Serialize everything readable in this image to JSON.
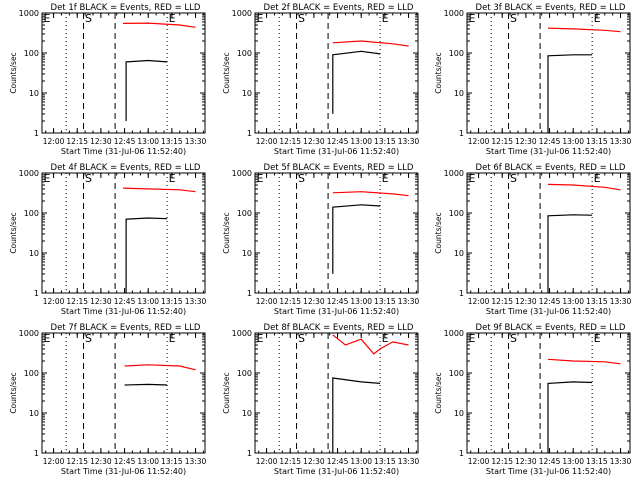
{
  "figure": {
    "xlabel": "Start Time (31-Jul-06 11:52:40)",
    "ylabel": "Counts/sec",
    "marker_labels": [
      "E",
      "S",
      "E"
    ]
  },
  "colors": {
    "events": "#000000",
    "lld": "#ff0000",
    "axis": "#000000",
    "background": "#ffffff"
  },
  "chart_data": [
    {
      "type": "line",
      "title": "Det 1f BLACK = Events, RED = LLD",
      "xlabel": "Start Time (31-Jul-06 11:52:40)",
      "ylabel": "Counts/sec",
      "x_ticks": [
        "12:00",
        "12:15",
        "12:30",
        "12:45",
        "13:00",
        "13:15",
        "13:30"
      ],
      "y_ticks": [
        "1",
        "10",
        "100",
        "1000"
      ],
      "ylim": [
        1,
        1000
      ],
      "y_scale": "log",
      "markers": [
        {
          "x": "12:08",
          "style": "dotted"
        },
        {
          "x": "12:19",
          "style": "dashed",
          "label": "S"
        },
        {
          "x": "12:39",
          "style": "dashed"
        },
        {
          "x": "13:12",
          "style": "dotted",
          "label": "E"
        }
      ],
      "series": [
        {
          "name": "BLACK = Events",
          "color": "#000000",
          "x": [
            "12:46",
            "12:46",
            "13:00",
            "13:12"
          ],
          "y": [
            2,
            60,
            65,
            60
          ]
        },
        {
          "name": "RED = LLD",
          "color": "#ff0000",
          "x": [
            "12:44",
            "13:00",
            "13:20",
            "13:30"
          ],
          "y": [
            550,
            560,
            500,
            440
          ]
        }
      ]
    },
    {
      "type": "line",
      "title": "Det 2f BLACK = Events, RED = LLD",
      "xlabel": "Start Time (31-Jul-06 11:52:40)",
      "ylabel": "Counts/sec",
      "x_ticks": [
        "12:00",
        "12:15",
        "12:30",
        "12:45",
        "13:00",
        "13:15",
        "13:30"
      ],
      "y_ticks": [
        "1",
        "10",
        "100",
        "1000"
      ],
      "ylim": [
        1,
        1000
      ],
      "y_scale": "log",
      "markers": [
        {
          "x": "12:08",
          "style": "dotted"
        },
        {
          "x": "12:19",
          "style": "dashed",
          "label": "S"
        },
        {
          "x": "12:39",
          "style": "dashed"
        },
        {
          "x": "13:12",
          "style": "dotted",
          "label": "E"
        }
      ],
      "series": [
        {
          "name": "BLACK = Events",
          "color": "#000000",
          "x": [
            "12:42",
            "12:42",
            "13:00",
            "13:12"
          ],
          "y": [
            3,
            90,
            110,
            95
          ]
        },
        {
          "name": "RED = LLD",
          "color": "#ff0000",
          "x": [
            "12:42",
            "13:00",
            "13:20",
            "13:30"
          ],
          "y": [
            180,
            200,
            170,
            150
          ]
        }
      ]
    },
    {
      "type": "line",
      "title": "Det 3f BLACK = Events, RED = LLD",
      "xlabel": "Start Time (31-Jul-06 11:52:40)",
      "ylabel": "Counts/sec",
      "x_ticks": [
        "12:00",
        "12:15",
        "12:30",
        "12:45",
        "13:00",
        "13:15",
        "13:30"
      ],
      "y_ticks": [
        "1",
        "10",
        "100",
        "1000"
      ],
      "ylim": [
        1,
        1000
      ],
      "y_scale": "log",
      "markers": [
        {
          "x": "12:08",
          "style": "dotted"
        },
        {
          "x": "12:19",
          "style": "dashed",
          "label": "S"
        },
        {
          "x": "12:39",
          "style": "dashed"
        },
        {
          "x": "13:12",
          "style": "dotted",
          "label": "E"
        }
      ],
      "series": [
        {
          "name": "BLACK = Events",
          "color": "#000000",
          "x": [
            "12:44",
            "12:44",
            "13:00",
            "13:12"
          ],
          "y": [
            1,
            85,
            90,
            90
          ]
        },
        {
          "name": "RED = LLD",
          "color": "#ff0000",
          "x": [
            "12:44",
            "13:00",
            "13:20",
            "13:30"
          ],
          "y": [
            420,
            400,
            370,
            340
          ]
        }
      ]
    },
    {
      "type": "line",
      "title": "Det 4f BLACK = Events, RED = LLD",
      "xlabel": "Start Time (31-Jul-06 11:52:40)",
      "ylabel": "Counts/sec",
      "x_ticks": [
        "12:00",
        "12:15",
        "12:30",
        "12:45",
        "13:00",
        "13:15",
        "13:30"
      ],
      "y_ticks": [
        "1",
        "10",
        "100",
        "1000"
      ],
      "ylim": [
        1,
        1000
      ],
      "y_scale": "log",
      "markers": [
        {
          "x": "12:08",
          "style": "dotted"
        },
        {
          "x": "12:19",
          "style": "dashed",
          "label": "S"
        },
        {
          "x": "12:39",
          "style": "dashed"
        },
        {
          "x": "13:12",
          "style": "dotted",
          "label": "E"
        }
      ],
      "series": [
        {
          "name": "BLACK = Events",
          "color": "#000000",
          "x": [
            "12:46",
            "12:46",
            "13:00",
            "13:12"
          ],
          "y": [
            1,
            70,
            75,
            72
          ]
        },
        {
          "name": "RED = LLD",
          "color": "#ff0000",
          "x": [
            "12:44",
            "13:00",
            "13:20",
            "13:30"
          ],
          "y": [
            420,
            400,
            380,
            340
          ]
        }
      ]
    },
    {
      "type": "line",
      "title": "Det 5f BLACK = Events, RED = LLD",
      "xlabel": "Start Time (31-Jul-06 11:52:40)",
      "ylabel": "Counts/sec",
      "x_ticks": [
        "12:00",
        "12:15",
        "12:30",
        "12:45",
        "13:00",
        "13:15",
        "13:30"
      ],
      "y_ticks": [
        "1",
        "10",
        "100",
        "1000"
      ],
      "ylim": [
        1,
        1000
      ],
      "y_scale": "log",
      "markers": [
        {
          "x": "12:08",
          "style": "dotted"
        },
        {
          "x": "12:19",
          "style": "dashed",
          "label": "S"
        },
        {
          "x": "12:39",
          "style": "dashed"
        },
        {
          "x": "13:12",
          "style": "dotted",
          "label": "E"
        }
      ],
      "series": [
        {
          "name": "BLACK = Events",
          "color": "#000000",
          "x": [
            "12:42",
            "12:42",
            "13:00",
            "13:12"
          ],
          "y": [
            3,
            140,
            160,
            150
          ]
        },
        {
          "name": "RED = LLD",
          "color": "#ff0000",
          "x": [
            "12:42",
            "13:00",
            "13:20",
            "13:30"
          ],
          "y": [
            320,
            340,
            300,
            270
          ]
        }
      ]
    },
    {
      "type": "line",
      "title": "Det 6f BLACK = Events, RED = LLD",
      "xlabel": "Start Time (31-Jul-06 11:52:40)",
      "ylabel": "Counts/sec",
      "x_ticks": [
        "12:00",
        "12:15",
        "12:30",
        "12:45",
        "13:00",
        "13:15",
        "13:30"
      ],
      "y_ticks": [
        "1",
        "10",
        "100",
        "1000"
      ],
      "ylim": [
        1,
        1000
      ],
      "y_scale": "log",
      "markers": [
        {
          "x": "12:08",
          "style": "dotted"
        },
        {
          "x": "12:19",
          "style": "dashed",
          "label": "S"
        },
        {
          "x": "12:39",
          "style": "dashed"
        },
        {
          "x": "13:12",
          "style": "dotted",
          "label": "E"
        }
      ],
      "series": [
        {
          "name": "BLACK = Events",
          "color": "#000000",
          "x": [
            "12:44",
            "12:44",
            "13:00",
            "13:12"
          ],
          "y": [
            1,
            85,
            90,
            88
          ]
        },
        {
          "name": "RED = LLD",
          "color": "#ff0000",
          "x": [
            "12:44",
            "13:00",
            "13:20",
            "13:30"
          ],
          "y": [
            520,
            500,
            440,
            380
          ]
        }
      ]
    },
    {
      "type": "line",
      "title": "Det 7f BLACK = Events, RED = LLD",
      "xlabel": "Start Time (31-Jul-06 11:52:40)",
      "ylabel": "Counts/sec",
      "x_ticks": [
        "12:00",
        "12:15",
        "12:30",
        "12:45",
        "13:00",
        "13:15",
        "13:30"
      ],
      "y_ticks": [
        "1",
        "10",
        "100",
        "1000"
      ],
      "ylim": [
        1,
        1000
      ],
      "y_scale": "log",
      "markers": [
        {
          "x": "12:08",
          "style": "dotted"
        },
        {
          "x": "12:19",
          "style": "dashed",
          "label": "S"
        },
        {
          "x": "12:39",
          "style": "dashed"
        },
        {
          "x": "13:12",
          "style": "dotted",
          "label": "E"
        }
      ],
      "series": [
        {
          "name": "BLACK = Events",
          "color": "#000000",
          "x": [
            "12:45",
            "13:00",
            "13:12"
          ],
          "y": [
            50,
            52,
            50
          ]
        },
        {
          "name": "RED = LLD",
          "color": "#ff0000",
          "x": [
            "12:45",
            "13:00",
            "13:20",
            "13:30"
          ],
          "y": [
            150,
            160,
            150,
            120
          ]
        }
      ]
    },
    {
      "type": "line",
      "title": "Det 8f BLACK = Events, RED = LLD",
      "xlabel": "Start Time (31-Jul-06 11:52:40)",
      "ylabel": "Counts/sec",
      "x_ticks": [
        "12:00",
        "12:15",
        "12:30",
        "12:45",
        "13:00",
        "13:15",
        "13:30"
      ],
      "y_ticks": [
        "1",
        "10",
        "100",
        "1000"
      ],
      "ylim": [
        1,
        1000
      ],
      "y_scale": "log",
      "markers": [
        {
          "x": "12:08",
          "style": "dotted"
        },
        {
          "x": "12:19",
          "style": "dashed",
          "label": "S"
        },
        {
          "x": "12:39",
          "style": "dashed"
        },
        {
          "x": "13:12",
          "style": "dotted",
          "label": "E"
        }
      ],
      "series": [
        {
          "name": "BLACK = Events",
          "color": "#000000",
          "x": [
            "12:42",
            "12:42",
            "13:00",
            "13:12"
          ],
          "y": [
            1,
            75,
            60,
            55
          ]
        },
        {
          "name": "RED = LLD",
          "color": "#ff0000",
          "x": [
            "12:42",
            "12:50",
            "13:00",
            "13:08",
            "13:12",
            "13:20",
            "13:30"
          ],
          "y": [
            900,
            500,
            700,
            300,
            400,
            600,
            500
          ]
        }
      ]
    },
    {
      "type": "line",
      "title": "Det 9f BLACK = Events, RED = LLD",
      "xlabel": "Start Time (31-Jul-06 11:52:40)",
      "ylabel": "Counts/sec",
      "x_ticks": [
        "12:00",
        "12:15",
        "12:30",
        "12:45",
        "13:00",
        "13:15",
        "13:30"
      ],
      "y_ticks": [
        "1",
        "10",
        "100",
        "1000"
      ],
      "ylim": [
        1,
        1000
      ],
      "y_scale": "log",
      "markers": [
        {
          "x": "12:08",
          "style": "dotted"
        },
        {
          "x": "12:19",
          "style": "dashed",
          "label": "S"
        },
        {
          "x": "12:39",
          "style": "dashed"
        },
        {
          "x": "13:12",
          "style": "dotted",
          "label": "E"
        }
      ],
      "series": [
        {
          "name": "BLACK = Events",
          "color": "#000000",
          "x": [
            "12:44",
            "12:44",
            "13:00",
            "13:12"
          ],
          "y": [
            1,
            55,
            60,
            58
          ]
        },
        {
          "name": "RED = LLD",
          "color": "#ff0000",
          "x": [
            "12:44",
            "13:00",
            "13:20",
            "13:30"
          ],
          "y": [
            220,
            200,
            190,
            170
          ]
        }
      ]
    }
  ]
}
